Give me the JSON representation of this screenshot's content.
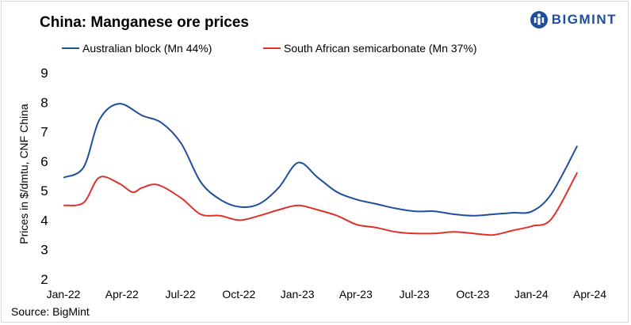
{
  "chart_data": {
    "type": "line",
    "title": "China: Manganese ore prices",
    "ylabel": "Prices in $/dmtu, CNF China",
    "xlabel": "",
    "ylim": [
      2,
      9
    ],
    "yticks": [
      2,
      3,
      4,
      5,
      6,
      7,
      8,
      9
    ],
    "xrange": [
      0,
      27
    ],
    "xticks": [
      {
        "x": 0,
        "label": "Jan-22"
      },
      {
        "x": 3,
        "label": "Apr-22"
      },
      {
        "x": 6,
        "label": "Jul-22"
      },
      {
        "x": 9,
        "label": "Oct-22"
      },
      {
        "x": 12,
        "label": "Jan-23"
      },
      {
        "x": 15,
        "label": "Apr-23"
      },
      {
        "x": 18,
        "label": "Jul-23"
      },
      {
        "x": 21,
        "label": "Oct-23"
      },
      {
        "x": 24,
        "label": "Jan-24"
      },
      {
        "x": 27,
        "label": "Apr-24"
      }
    ],
    "legend_position": "top",
    "series": [
      {
        "name": "Australian block (Mn 44%)",
        "color": "#1f4e9c",
        "points": [
          [
            0,
            5.45
          ],
          [
            1,
            5.8
          ],
          [
            1.8,
            7.4
          ],
          [
            2.8,
            7.95
          ],
          [
            4,
            7.55
          ],
          [
            5,
            7.3
          ],
          [
            6,
            6.6
          ],
          [
            7,
            5.3
          ],
          [
            8,
            4.7
          ],
          [
            9,
            4.45
          ],
          [
            10,
            4.55
          ],
          [
            11,
            5.1
          ],
          [
            12,
            5.95
          ],
          [
            13,
            5.45
          ],
          [
            14,
            4.95
          ],
          [
            15,
            4.7
          ],
          [
            16,
            4.55
          ],
          [
            17,
            4.4
          ],
          [
            18,
            4.3
          ],
          [
            19,
            4.3
          ],
          [
            20,
            4.2
          ],
          [
            21,
            4.15
          ],
          [
            22,
            4.2
          ],
          [
            23,
            4.25
          ],
          [
            24,
            4.3
          ],
          [
            25,
            4.9
          ],
          [
            26.3,
            6.5
          ]
        ]
      },
      {
        "name": "South African semicarbonate (Mn 37%)",
        "color": "#e0302a",
        "points": [
          [
            0,
            4.5
          ],
          [
            1,
            4.6
          ],
          [
            1.8,
            5.45
          ],
          [
            2.8,
            5.25
          ],
          [
            3.5,
            4.95
          ],
          [
            4,
            5.1
          ],
          [
            4.8,
            5.2
          ],
          [
            6,
            4.75
          ],
          [
            7,
            4.2
          ],
          [
            8,
            4.15
          ],
          [
            9,
            4.0
          ],
          [
            10,
            4.15
          ],
          [
            11,
            4.35
          ],
          [
            12,
            4.5
          ],
          [
            13,
            4.35
          ],
          [
            14,
            4.15
          ],
          [
            15,
            3.85
          ],
          [
            16,
            3.75
          ],
          [
            17,
            3.6
          ],
          [
            18,
            3.55
          ],
          [
            19,
            3.55
          ],
          [
            20,
            3.6
          ],
          [
            21,
            3.55
          ],
          [
            22,
            3.5
          ],
          [
            23,
            3.65
          ],
          [
            24,
            3.8
          ],
          [
            25,
            4.05
          ],
          [
            26.3,
            5.6
          ]
        ]
      }
    ]
  },
  "brand": {
    "name": "BIGMINT",
    "color": "#1f4e9c"
  },
  "source": "Source: BigMint"
}
